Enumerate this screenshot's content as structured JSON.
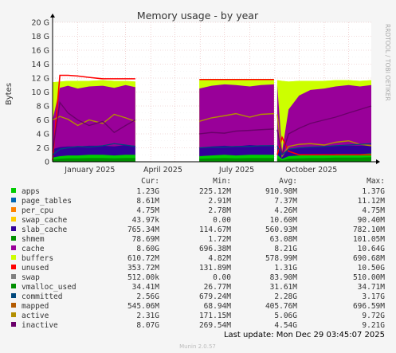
{
  "chart_data": {
    "type": "area",
    "title": "Memory usage - by year",
    "ylabel": "Bytes",
    "watermark": "RRDTOOL / TOBI OETIKER",
    "y_unit": "bytes",
    "ylim": [
      0,
      20
    ],
    "y_ticks": [
      "0",
      "2 G",
      "4 G",
      "6 G",
      "8 G",
      "10 G",
      "12 G",
      "14 G",
      "16 G",
      "18 G",
      "20 G"
    ],
    "y_tick_values": [
      0,
      2,
      4,
      6,
      8,
      10,
      12,
      14,
      16,
      18,
      20
    ],
    "x_ticks": [
      "January 2025",
      "April 2025",
      "July 2025",
      "October 2025"
    ],
    "x_range": [
      "2024-12-01",
      "2025-12-29"
    ],
    "grid": true,
    "background_color": "#ffffff",
    "gaps": [
      [
        "2025-03-13",
        "2025-05-31"
      ],
      [
        "2025-08-31",
        "2025-09-04"
      ]
    ],
    "columns": [
      "Cur:",
      "Min:",
      "Avg:",
      "Max:"
    ],
    "series": [
      {
        "name": "apps",
        "color": "#00cc00",
        "cur": "1.23G",
        "min": "225.12M",
        "avg": "910.98M",
        "max": "1.37G"
      },
      {
        "name": "page_tables",
        "color": "#0066b3",
        "cur": "8.61M",
        "min": "2.91M",
        "avg": "7.37M",
        "max": "11.12M"
      },
      {
        "name": "per_cpu",
        "color": "#ff8000",
        "cur": "4.75M",
        "min": "2.78M",
        "avg": "4.26M",
        "max": "4.75M"
      },
      {
        "name": "swap_cache",
        "color": "#ffcc00",
        "cur": "43.97k",
        "min": "0.00",
        "avg": "10.60M",
        "max": "90.40M"
      },
      {
        "name": "slab_cache",
        "color": "#330099",
        "cur": "765.34M",
        "min": "114.67M",
        "avg": "560.93M",
        "max": "782.10M"
      },
      {
        "name": "shmem",
        "color": "#008f00",
        "cur": "78.69M",
        "min": "1.72M",
        "avg": "63.08M",
        "max": "101.05M"
      },
      {
        "name": "cache",
        "color": "#990099",
        "cur": "8.60G",
        "min": "696.38M",
        "avg": "8.21G",
        "max": "10.64G"
      },
      {
        "name": "buffers",
        "color": "#ccff00",
        "cur": "610.72M",
        "min": "4.82M",
        "avg": "578.99M",
        "max": "690.68M"
      },
      {
        "name": "unused",
        "color": "#ff0000",
        "cur": "353.72M",
        "min": "131.89M",
        "avg": "1.31G",
        "max": "10.50G"
      },
      {
        "name": "swap",
        "color": "#808080",
        "cur": "512.00k",
        "min": "0.00",
        "avg": "83.90M",
        "max": "510.00M"
      },
      {
        "name": "vmalloc_used",
        "color": "#008f00",
        "cur": "34.41M",
        "min": "26.77M",
        "avg": "31.61M",
        "max": "34.71M"
      },
      {
        "name": "committed",
        "color": "#00487d",
        "cur": "2.56G",
        "min": "679.24M",
        "avg": "2.28G",
        "max": "3.17G"
      },
      {
        "name": "mapped",
        "color": "#b35a00",
        "cur": "545.06M",
        "min": "68.94M",
        "avg": "405.76M",
        "max": "696.59M"
      },
      {
        "name": "active",
        "color": "#b38f00",
        "cur": "2.31G",
        "min": "171.15M",
        "avg": "5.06G",
        "max": "9.72G"
      },
      {
        "name": "inactive",
        "color": "#6b006b",
        "cur": "8.07G",
        "min": "269.54M",
        "avg": "4.54G",
        "max": "9.21G"
      }
    ],
    "segments": [
      {
        "start": "2024-12-01",
        "end": "2025-03-13",
        "x": [
          "2024-12-01",
          "2024-12-10",
          "2024-12-20",
          "2025-01-01",
          "2025-01-15",
          "2025-02-01",
          "2025-02-15",
          "2025-03-01",
          "2025-03-13"
        ],
        "buffers": [
          11.4,
          11.5,
          11.6,
          11.6,
          11.6,
          11.7,
          11.6,
          11.6,
          11.5
        ],
        "cache": [
          6.0,
          10.6,
          10.9,
          10.5,
          10.8,
          10.9,
          10.6,
          11.0,
          10.7
        ],
        "slab": [
          1.8,
          2.1,
          2.2,
          2.2,
          2.3,
          2.3,
          2.2,
          2.4,
          2.3
        ],
        "apps": [
          0.6,
          0.8,
          0.9,
          0.9,
          1.0,
          1.0,
          0.9,
          1.0,
          1.0
        ],
        "unused": [
          0.2,
          12.4,
          12.4,
          12.3,
          12.1,
          11.9,
          11.9,
          11.9,
          11.9
        ],
        "active": [
          6.0,
          6.5,
          6.1,
          5.2,
          6.0,
          5.5,
          6.8,
          6.3,
          5.8
        ],
        "inactive": [
          1.5,
          8.5,
          7.0,
          6.0,
          5.2,
          5.8,
          4.2,
          5.2,
          6.0
        ],
        "committed": [
          1.0,
          1.8,
          2.0,
          2.2,
          2.1,
          2.3,
          2.6,
          2.4,
          2.2
        ]
      },
      {
        "start": "2025-05-31",
        "end": "2025-08-31",
        "x": [
          "2025-05-31",
          "2025-06-15",
          "2025-07-01",
          "2025-07-15",
          "2025-08-01",
          "2025-08-15",
          "2025-08-31"
        ],
        "buffers": [
          11.7,
          11.8,
          11.8,
          11.7,
          11.8,
          11.7,
          11.8
        ],
        "cache": [
          10.5,
          10.9,
          11.1,
          11.0,
          10.8,
          11.0,
          11.1
        ],
        "slab": [
          2.0,
          2.2,
          2.3,
          2.2,
          2.4,
          2.3,
          2.4
        ],
        "apps": [
          0.8,
          0.9,
          1.0,
          0.9,
          1.0,
          1.0,
          1.0
        ],
        "unused": [
          11.8,
          11.8,
          11.8,
          11.8,
          11.8,
          11.8,
          11.8
        ],
        "active": [
          5.8,
          6.3,
          6.6,
          6.9,
          6.4,
          6.8,
          6.9
        ],
        "inactive": [
          4.0,
          4.2,
          4.1,
          4.4,
          4.5,
          4.6,
          4.7
        ],
        "committed": [
          2.0,
          2.1,
          2.1,
          2.2,
          2.2,
          2.3,
          2.3
        ]
      },
      {
        "start": "2025-09-04",
        "end": "2025-12-29",
        "x": [
          "2025-09-04",
          "2025-09-10",
          "2025-09-18",
          "2025-10-01",
          "2025-10-15",
          "2025-11-01",
          "2025-11-15",
          "2025-12-01",
          "2025-12-15",
          "2025-12-29"
        ],
        "buffers": [
          11.7,
          11.6,
          11.5,
          11.6,
          11.6,
          11.6,
          11.7,
          11.7,
          11.6,
          11.7
        ],
        "cache": [
          11.0,
          1.5,
          7.5,
          9.5,
          10.3,
          10.5,
          10.8,
          11.0,
          10.8,
          11.0
        ],
        "slab": [
          2.4,
          0.9,
          1.8,
          2.0,
          2.1,
          2.2,
          2.3,
          2.3,
          2.3,
          2.4
        ],
        "apps": [
          1.0,
          0.4,
          0.8,
          0.9,
          1.0,
          1.0,
          1.1,
          1.1,
          1.1,
          1.2
        ],
        "unused": [
          1.0,
          3.5,
          1.5,
          1.0,
          1.0,
          1.0,
          1.0,
          1.0,
          1.0,
          1.0
        ],
        "active": [
          6.8,
          0.8,
          2.2,
          2.5,
          2.6,
          2.4,
          2.8,
          3.0,
          2.5,
          2.3
        ],
        "inactive": [
          4.6,
          1.0,
          4.0,
          4.8,
          5.5,
          6.0,
          6.4,
          7.0,
          7.5,
          8.0
        ],
        "committed": [
          2.3,
          1.0,
          1.8,
          2.0,
          2.1,
          2.2,
          2.3,
          2.4,
          2.5,
          2.6
        ]
      }
    ],
    "footer": {
      "last_update": "Last update: Mon Dec 29 03:45:07 2025",
      "munin": "Munin 2.0.57"
    }
  }
}
